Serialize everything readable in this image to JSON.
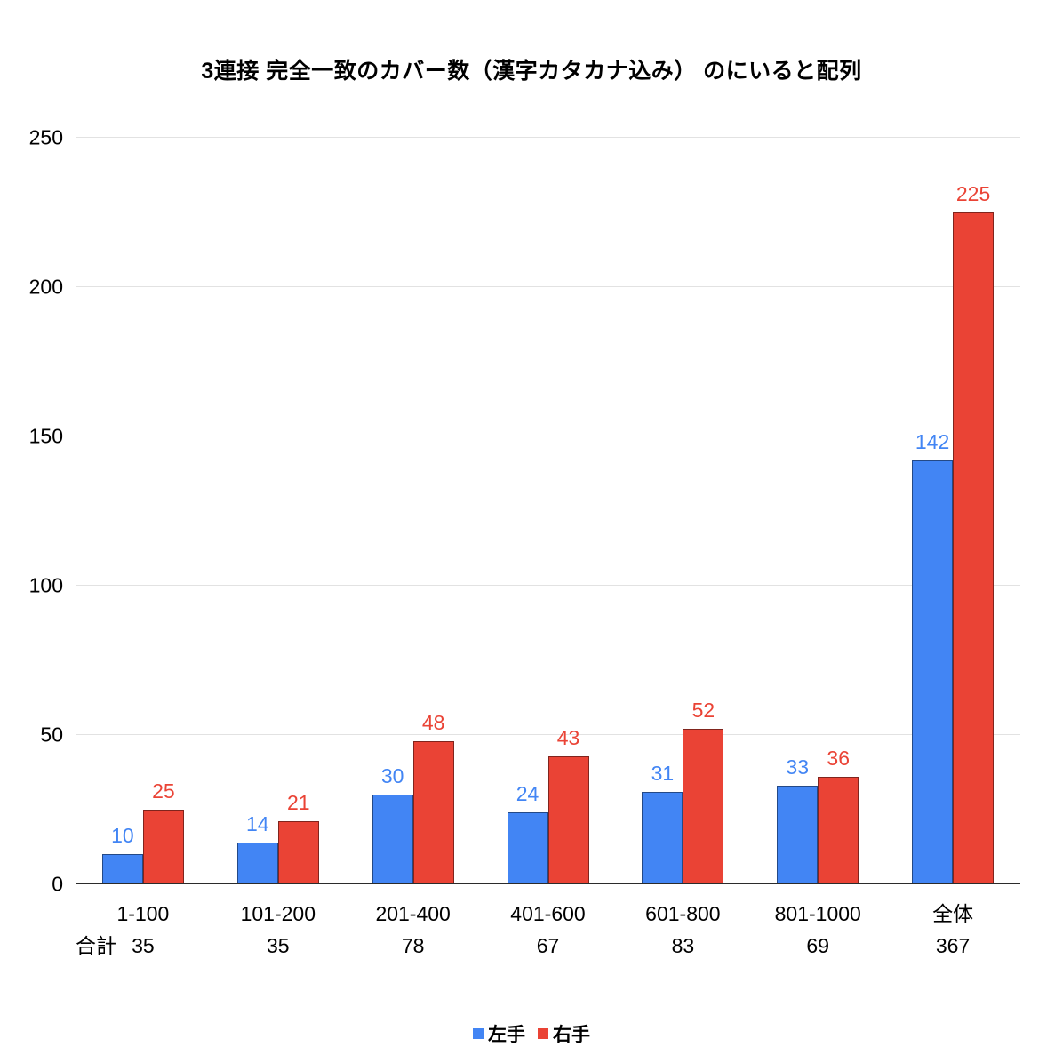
{
  "chart_data": {
    "type": "bar",
    "title": "3連接 完全一致のカバー数（漢字カタカナ込み） のにいると配列",
    "categories": [
      "1-100",
      "101-200",
      "201-400",
      "401-600",
      "601-800",
      "801-1000",
      "全体"
    ],
    "series": [
      {
        "name": "左手",
        "color": "#4285F4",
        "values": [
          10,
          14,
          30,
          24,
          31,
          33,
          142
        ]
      },
      {
        "name": "右手",
        "color": "#EA4335",
        "values": [
          25,
          21,
          48,
          43,
          52,
          36,
          225
        ]
      }
    ],
    "totals_label": "合計",
    "totals": [
      35,
      35,
      78,
      67,
      83,
      69,
      367
    ],
    "ylim": [
      0,
      250
    ],
    "yticks": [
      0,
      50,
      100,
      150,
      200,
      250
    ],
    "grid": true,
    "legend_position": "bottom",
    "background_color": "#ffffff",
    "gridline_color": "#e2e2e2"
  }
}
